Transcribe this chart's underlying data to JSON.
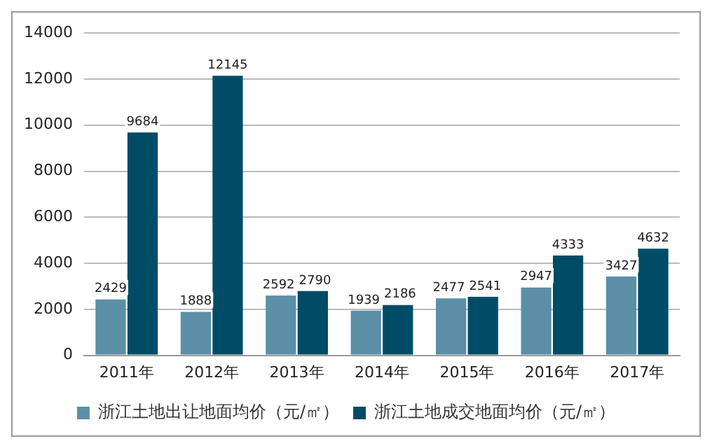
{
  "chart_data": {
    "type": "bar",
    "categories": [
      "2011年",
      "2012年",
      "2013年",
      "2014年",
      "2015年",
      "2016年",
      "2017年"
    ],
    "series": [
      {
        "name": "浙江土地出让地面均价（元/㎡）",
        "color": "#5b8fa8",
        "values": [
          2429,
          1888,
          2592,
          1939,
          2477,
          2947,
          3427
        ]
      },
      {
        "name": "浙江土地成交地面均价（元/㎡）",
        "color": "#004c66",
        "values": [
          9684,
          12145,
          2790,
          2186,
          2541,
          4333,
          4632
        ]
      }
    ],
    "ylim": [
      0,
      14000
    ],
    "yticks": [
      0,
      2000,
      4000,
      6000,
      8000,
      10000,
      12000,
      14000
    ],
    "grid": "y",
    "legend": "bottom",
    "data_labels": true
  }
}
